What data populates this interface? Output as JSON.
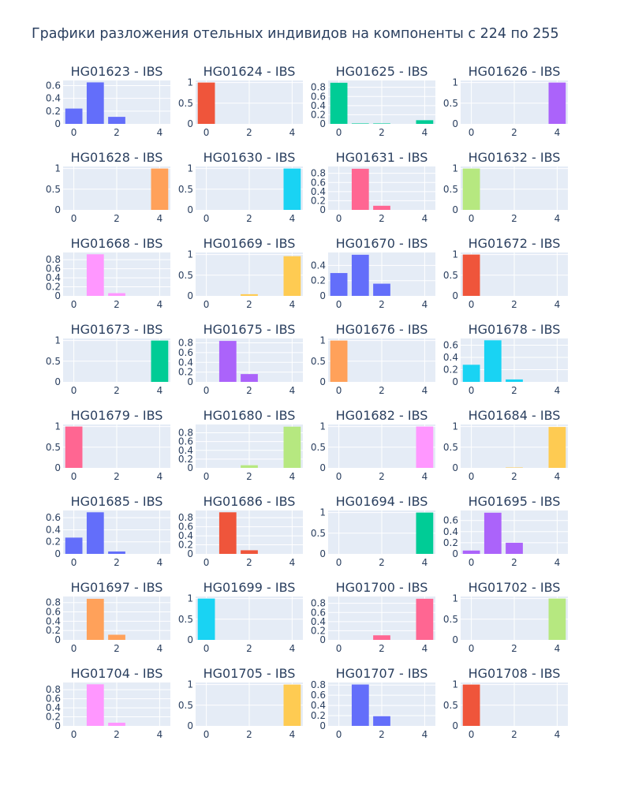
{
  "page_title": "Графики разложения отельных индивидов на компоненты с 224 по 255",
  "colors": {
    "plot_bg": "#e5ecf6",
    "grid": "#ffffff",
    "text": "#2a3f5f",
    "palette": [
      "#636efa",
      "#ef553b",
      "#00cc96",
      "#ab63fa",
      "#ffa15a",
      "#19d3f3",
      "#ff6692",
      "#b6e880",
      "#ff97ff",
      "#fecb52"
    ]
  },
  "chart_data": [
    {
      "type": "bar",
      "title": "HG01623 - IBS",
      "categories": [
        0,
        1,
        2,
        3,
        4
      ],
      "values": [
        0.24,
        0.65,
        0.11,
        0,
        0
      ],
      "color": "#636efa",
      "yticks": [
        "0",
        "0.2",
        "0.4",
        "0.6"
      ],
      "ylim": [
        0,
        0.68
      ],
      "xticks": [
        "0",
        "2",
        "4"
      ]
    },
    {
      "type": "bar",
      "title": "HG01624 - IBS",
      "categories": [
        0,
        1,
        2,
        3,
        4
      ],
      "values": [
        1,
        0,
        0,
        0,
        0
      ],
      "color": "#ef553b",
      "yticks": [
        "0",
        "0.5",
        "1"
      ],
      "ylim": [
        0,
        1.05
      ],
      "xticks": [
        "0",
        "2",
        "4"
      ]
    },
    {
      "type": "bar",
      "title": "HG01625 - IBS",
      "categories": [
        0,
        1,
        2,
        3,
        4
      ],
      "values": [
        0.9,
        0.01,
        0.01,
        0,
        0.08
      ],
      "color": "#00cc96",
      "yticks": [
        "0",
        "0.2",
        "0.4",
        "0.6",
        "0.8"
      ],
      "ylim": [
        0,
        0.95
      ],
      "xticks": [
        "0",
        "2",
        "4"
      ]
    },
    {
      "type": "bar",
      "title": "HG01626 - IBS",
      "categories": [
        0,
        1,
        2,
        3,
        4
      ],
      "values": [
        0,
        0,
        0,
        0,
        1
      ],
      "color": "#ab63fa",
      "yticks": [
        "0",
        "0.5",
        "1"
      ],
      "ylim": [
        0,
        1.05
      ],
      "xticks": [
        "0",
        "2",
        "4"
      ]
    },
    {
      "type": "bar",
      "title": "HG01628 - IBS",
      "categories": [
        0,
        1,
        2,
        3,
        4
      ],
      "values": [
        0,
        0,
        0,
        0,
        1
      ],
      "color": "#ffa15a",
      "yticks": [
        "0",
        "0.5",
        "1"
      ],
      "ylim": [
        0,
        1.05
      ],
      "xticks": [
        "0",
        "2",
        "4"
      ]
    },
    {
      "type": "bar",
      "title": "HG01630 - IBS",
      "categories": [
        0,
        1,
        2,
        3,
        4
      ],
      "values": [
        0,
        0,
        0,
        0,
        1
      ],
      "color": "#19d3f3",
      "yticks": [
        "0",
        "0.5",
        "1"
      ],
      "ylim": [
        0,
        1.05
      ],
      "xticks": [
        "0",
        "2",
        "4"
      ]
    },
    {
      "type": "bar",
      "title": "HG01631 - IBS",
      "categories": [
        0,
        1,
        2,
        3,
        4
      ],
      "values": [
        0,
        0.9,
        0.09,
        0,
        0
      ],
      "color": "#ff6692",
      "yticks": [
        "0",
        "0.2",
        "0.4",
        "0.6",
        "0.8"
      ],
      "ylim": [
        0,
        0.95
      ],
      "xticks": [
        "0",
        "2",
        "4"
      ]
    },
    {
      "type": "bar",
      "title": "HG01632 - IBS",
      "categories": [
        0,
        1,
        2,
        3,
        4
      ],
      "values": [
        1,
        0,
        0,
        0,
        0
      ],
      "color": "#b6e880",
      "yticks": [
        "0",
        "0.5",
        "1"
      ],
      "ylim": [
        0,
        1.05
      ],
      "xticks": [
        "0",
        "2",
        "4"
      ]
    },
    {
      "type": "bar",
      "title": "HG01668 - IBS",
      "categories": [
        0,
        1,
        2,
        3,
        4
      ],
      "values": [
        0,
        0.92,
        0.06,
        0,
        0
      ],
      "color": "#ff97ff",
      "yticks": [
        "0",
        "0.2",
        "0.4",
        "0.6",
        "0.8"
      ],
      "ylim": [
        0,
        0.96
      ],
      "xticks": [
        "0",
        "2",
        "4"
      ]
    },
    {
      "type": "bar",
      "title": "HG01669 - IBS",
      "categories": [
        0,
        1,
        2,
        3,
        4
      ],
      "values": [
        0,
        0,
        0.04,
        0,
        0.96
      ],
      "color": "#fecb52",
      "yticks": [
        "0",
        "0.5",
        "1"
      ],
      "ylim": [
        0,
        1.05
      ],
      "xticks": [
        "0",
        "2",
        "4"
      ]
    },
    {
      "type": "bar",
      "title": "HG01670 - IBS",
      "categories": [
        0,
        1,
        2,
        3,
        4
      ],
      "values": [
        0.3,
        0.54,
        0.16,
        0,
        0
      ],
      "color": "#636efa",
      "yticks": [
        "0",
        "0.2",
        "0.4"
      ],
      "ylim": [
        0,
        0.57
      ],
      "xticks": [
        "0",
        "2",
        "4"
      ]
    },
    {
      "type": "bar",
      "title": "HG01672 - IBS",
      "categories": [
        0,
        1,
        2,
        3,
        4
      ],
      "values": [
        1,
        0,
        0,
        0,
        0
      ],
      "color": "#ef553b",
      "yticks": [
        "0",
        "0.5",
        "1"
      ],
      "ylim": [
        0,
        1.05
      ],
      "xticks": [
        "0",
        "2",
        "4"
      ]
    },
    {
      "type": "bar",
      "title": "HG01673 - IBS",
      "categories": [
        0,
        1,
        2,
        3,
        4
      ],
      "values": [
        0,
        0,
        0,
        0,
        1
      ],
      "color": "#00cc96",
      "yticks": [
        "0",
        "0.5",
        "1"
      ],
      "ylim": [
        0,
        1.05
      ],
      "xticks": [
        "0",
        "2",
        "4"
      ]
    },
    {
      "type": "bar",
      "title": "HG01675 - IBS",
      "categories": [
        0,
        1,
        2,
        3,
        4
      ],
      "values": [
        0,
        0.84,
        0.16,
        0,
        0
      ],
      "color": "#ab63fa",
      "yticks": [
        "0",
        "0.2",
        "0.4",
        "0.6",
        "0.8"
      ],
      "ylim": [
        0,
        0.89
      ],
      "xticks": [
        "0",
        "2",
        "4"
      ]
    },
    {
      "type": "bar",
      "title": "HG01676 - IBS",
      "categories": [
        0,
        1,
        2,
        3,
        4
      ],
      "values": [
        1,
        0,
        0,
        0,
        0
      ],
      "color": "#ffa15a",
      "yticks": [
        "0",
        "0.5",
        "1"
      ],
      "ylim": [
        0,
        1.05
      ],
      "xticks": [
        "0",
        "2",
        "4"
      ]
    },
    {
      "type": "bar",
      "title": "HG01678 - IBS",
      "categories": [
        0,
        1,
        2,
        3,
        4
      ],
      "values": [
        0.28,
        0.68,
        0.04,
        0,
        0
      ],
      "color": "#19d3f3",
      "yticks": [
        "0",
        "0.2",
        "0.4",
        "0.6"
      ],
      "ylim": [
        0,
        0.71
      ],
      "xticks": [
        "0",
        "2",
        "4"
      ]
    },
    {
      "type": "bar",
      "title": "HG01679 - IBS",
      "categories": [
        0,
        1,
        2,
        3,
        4
      ],
      "values": [
        1,
        0,
        0,
        0,
        0
      ],
      "color": "#ff6692",
      "yticks": [
        "0",
        "0.5",
        "1"
      ],
      "ylim": [
        0,
        1.05
      ],
      "xticks": [
        "0",
        "2",
        "4"
      ]
    },
    {
      "type": "bar",
      "title": "HG01680 - IBS",
      "categories": [
        0,
        1,
        2,
        3,
        4
      ],
      "values": [
        0,
        0,
        0.06,
        0,
        0.94
      ],
      "color": "#b6e880",
      "yticks": [
        "0",
        "0.2",
        "0.4",
        "0.6",
        "0.8"
      ],
      "ylim": [
        0,
        0.99
      ],
      "xticks": [
        "0",
        "2",
        "4"
      ]
    },
    {
      "type": "bar",
      "title": "HG01682 - IBS",
      "categories": [
        0,
        1,
        2,
        3,
        4
      ],
      "values": [
        0,
        0,
        0,
        0,
        1
      ],
      "color": "#ff97ff",
      "yticks": [
        "0",
        "0.5",
        "1"
      ],
      "ylim": [
        0,
        1.05
      ],
      "xticks": [
        "0",
        "2",
        "4"
      ]
    },
    {
      "type": "bar",
      "title": "HG01684 - IBS",
      "categories": [
        0,
        1,
        2,
        3,
        4
      ],
      "values": [
        0,
        0,
        0.01,
        0,
        0.99
      ],
      "color": "#fecb52",
      "yticks": [
        "0",
        "0.5",
        "1"
      ],
      "ylim": [
        0,
        1.05
      ],
      "xticks": [
        "0",
        "2",
        "4"
      ]
    },
    {
      "type": "bar",
      "title": "HG01685 - IBS",
      "categories": [
        0,
        1,
        2,
        3,
        4
      ],
      "values": [
        0.27,
        0.69,
        0.04,
        0,
        0
      ],
      "color": "#636efa",
      "yticks": [
        "0",
        "0.2",
        "0.4",
        "0.6"
      ],
      "ylim": [
        0,
        0.72
      ],
      "xticks": [
        "0",
        "2",
        "4"
      ]
    },
    {
      "type": "bar",
      "title": "HG01686 - IBS",
      "categories": [
        0,
        1,
        2,
        3,
        4
      ],
      "values": [
        0,
        0.92,
        0.08,
        0,
        0
      ],
      "color": "#ef553b",
      "yticks": [
        "0",
        "0.2",
        "0.4",
        "0.6",
        "0.8"
      ],
      "ylim": [
        0,
        0.96
      ],
      "xticks": [
        "0",
        "2",
        "4"
      ]
    },
    {
      "type": "bar",
      "title": "HG01694 - IBS",
      "categories": [
        0,
        1,
        2,
        3,
        4
      ],
      "values": [
        0,
        0,
        0,
        0,
        1
      ],
      "color": "#00cc96",
      "yticks": [
        "0",
        "0.5",
        "1"
      ],
      "ylim": [
        0,
        1.05
      ],
      "xticks": [
        "0",
        "2",
        "4"
      ]
    },
    {
      "type": "bar",
      "title": "HG01695 - IBS",
      "categories": [
        0,
        1,
        2,
        3,
        4
      ],
      "values": [
        0.06,
        0.74,
        0.2,
        0,
        0
      ],
      "color": "#ab63fa",
      "yticks": [
        "0",
        "0.2",
        "0.4",
        "0.6"
      ],
      "ylim": [
        0,
        0.78
      ],
      "xticks": [
        "0",
        "2",
        "4"
      ]
    },
    {
      "type": "bar",
      "title": "HG01697 - IBS",
      "categories": [
        0,
        1,
        2,
        3,
        4
      ],
      "values": [
        0,
        0.88,
        0.11,
        0,
        0
      ],
      "color": "#ffa15a",
      "yticks": [
        "0",
        "0.2",
        "0.4",
        "0.6",
        "0.8"
      ],
      "ylim": [
        0,
        0.93
      ],
      "xticks": [
        "0",
        "2",
        "4"
      ]
    },
    {
      "type": "bar",
      "title": "HG01699 - IBS",
      "categories": [
        0,
        1,
        2,
        3,
        4
      ],
      "values": [
        1,
        0,
        0,
        0,
        0
      ],
      "color": "#19d3f3",
      "yticks": [
        "0",
        "0.5",
        "1"
      ],
      "ylim": [
        0,
        1.05
      ],
      "xticks": [
        "0",
        "2",
        "4"
      ]
    },
    {
      "type": "bar",
      "title": "HG01700 - IBS",
      "categories": [
        0,
        1,
        2,
        3,
        4
      ],
      "values": [
        0,
        0,
        0.1,
        0,
        0.9
      ],
      "color": "#ff6692",
      "yticks": [
        "0",
        "0.2",
        "0.4",
        "0.6",
        "0.8"
      ],
      "ylim": [
        0,
        0.95
      ],
      "xticks": [
        "0",
        "2",
        "4"
      ]
    },
    {
      "type": "bar",
      "title": "HG01702 - IBS",
      "categories": [
        0,
        1,
        2,
        3,
        4
      ],
      "values": [
        0,
        0,
        0,
        0,
        1
      ],
      "color": "#b6e880",
      "yticks": [
        "0",
        "0.5",
        "1"
      ],
      "ylim": [
        0,
        1.05
      ],
      "xticks": [
        "0",
        "2",
        "4"
      ]
    },
    {
      "type": "bar",
      "title": "HG01704 - IBS",
      "categories": [
        0,
        1,
        2,
        3,
        4
      ],
      "values": [
        0,
        0.92,
        0.07,
        0,
        0
      ],
      "color": "#ff97ff",
      "yticks": [
        "0",
        "0.2",
        "0.4",
        "0.6",
        "0.8"
      ],
      "ylim": [
        0,
        0.96
      ],
      "xticks": [
        "0",
        "2",
        "4"
      ]
    },
    {
      "type": "bar",
      "title": "HG01705 - IBS",
      "categories": [
        0,
        1,
        2,
        3,
        4
      ],
      "values": [
        0,
        0,
        0,
        0,
        1
      ],
      "color": "#fecb52",
      "yticks": [
        "0",
        "0.5",
        "1"
      ],
      "ylim": [
        0,
        1.05
      ],
      "xticks": [
        "0",
        "2",
        "4"
      ]
    },
    {
      "type": "bar",
      "title": "HG01707 - IBS",
      "categories": [
        0,
        1,
        2,
        3,
        4
      ],
      "values": [
        0,
        0.81,
        0.19,
        0,
        0
      ],
      "color": "#636efa",
      "yticks": [
        "0",
        "0.2",
        "0.4",
        "0.6",
        "0.8"
      ],
      "ylim": [
        0,
        0.85
      ],
      "xticks": [
        "0",
        "2",
        "4"
      ]
    },
    {
      "type": "bar",
      "title": "HG01708 - IBS",
      "categories": [
        0,
        1,
        2,
        3,
        4
      ],
      "values": [
        1,
        0,
        0,
        0,
        0
      ],
      "color": "#ef553b",
      "yticks": [
        "0",
        "0.5",
        "1"
      ],
      "ylim": [
        0,
        1.05
      ],
      "xticks": [
        "0",
        "2",
        "4"
      ]
    }
  ]
}
